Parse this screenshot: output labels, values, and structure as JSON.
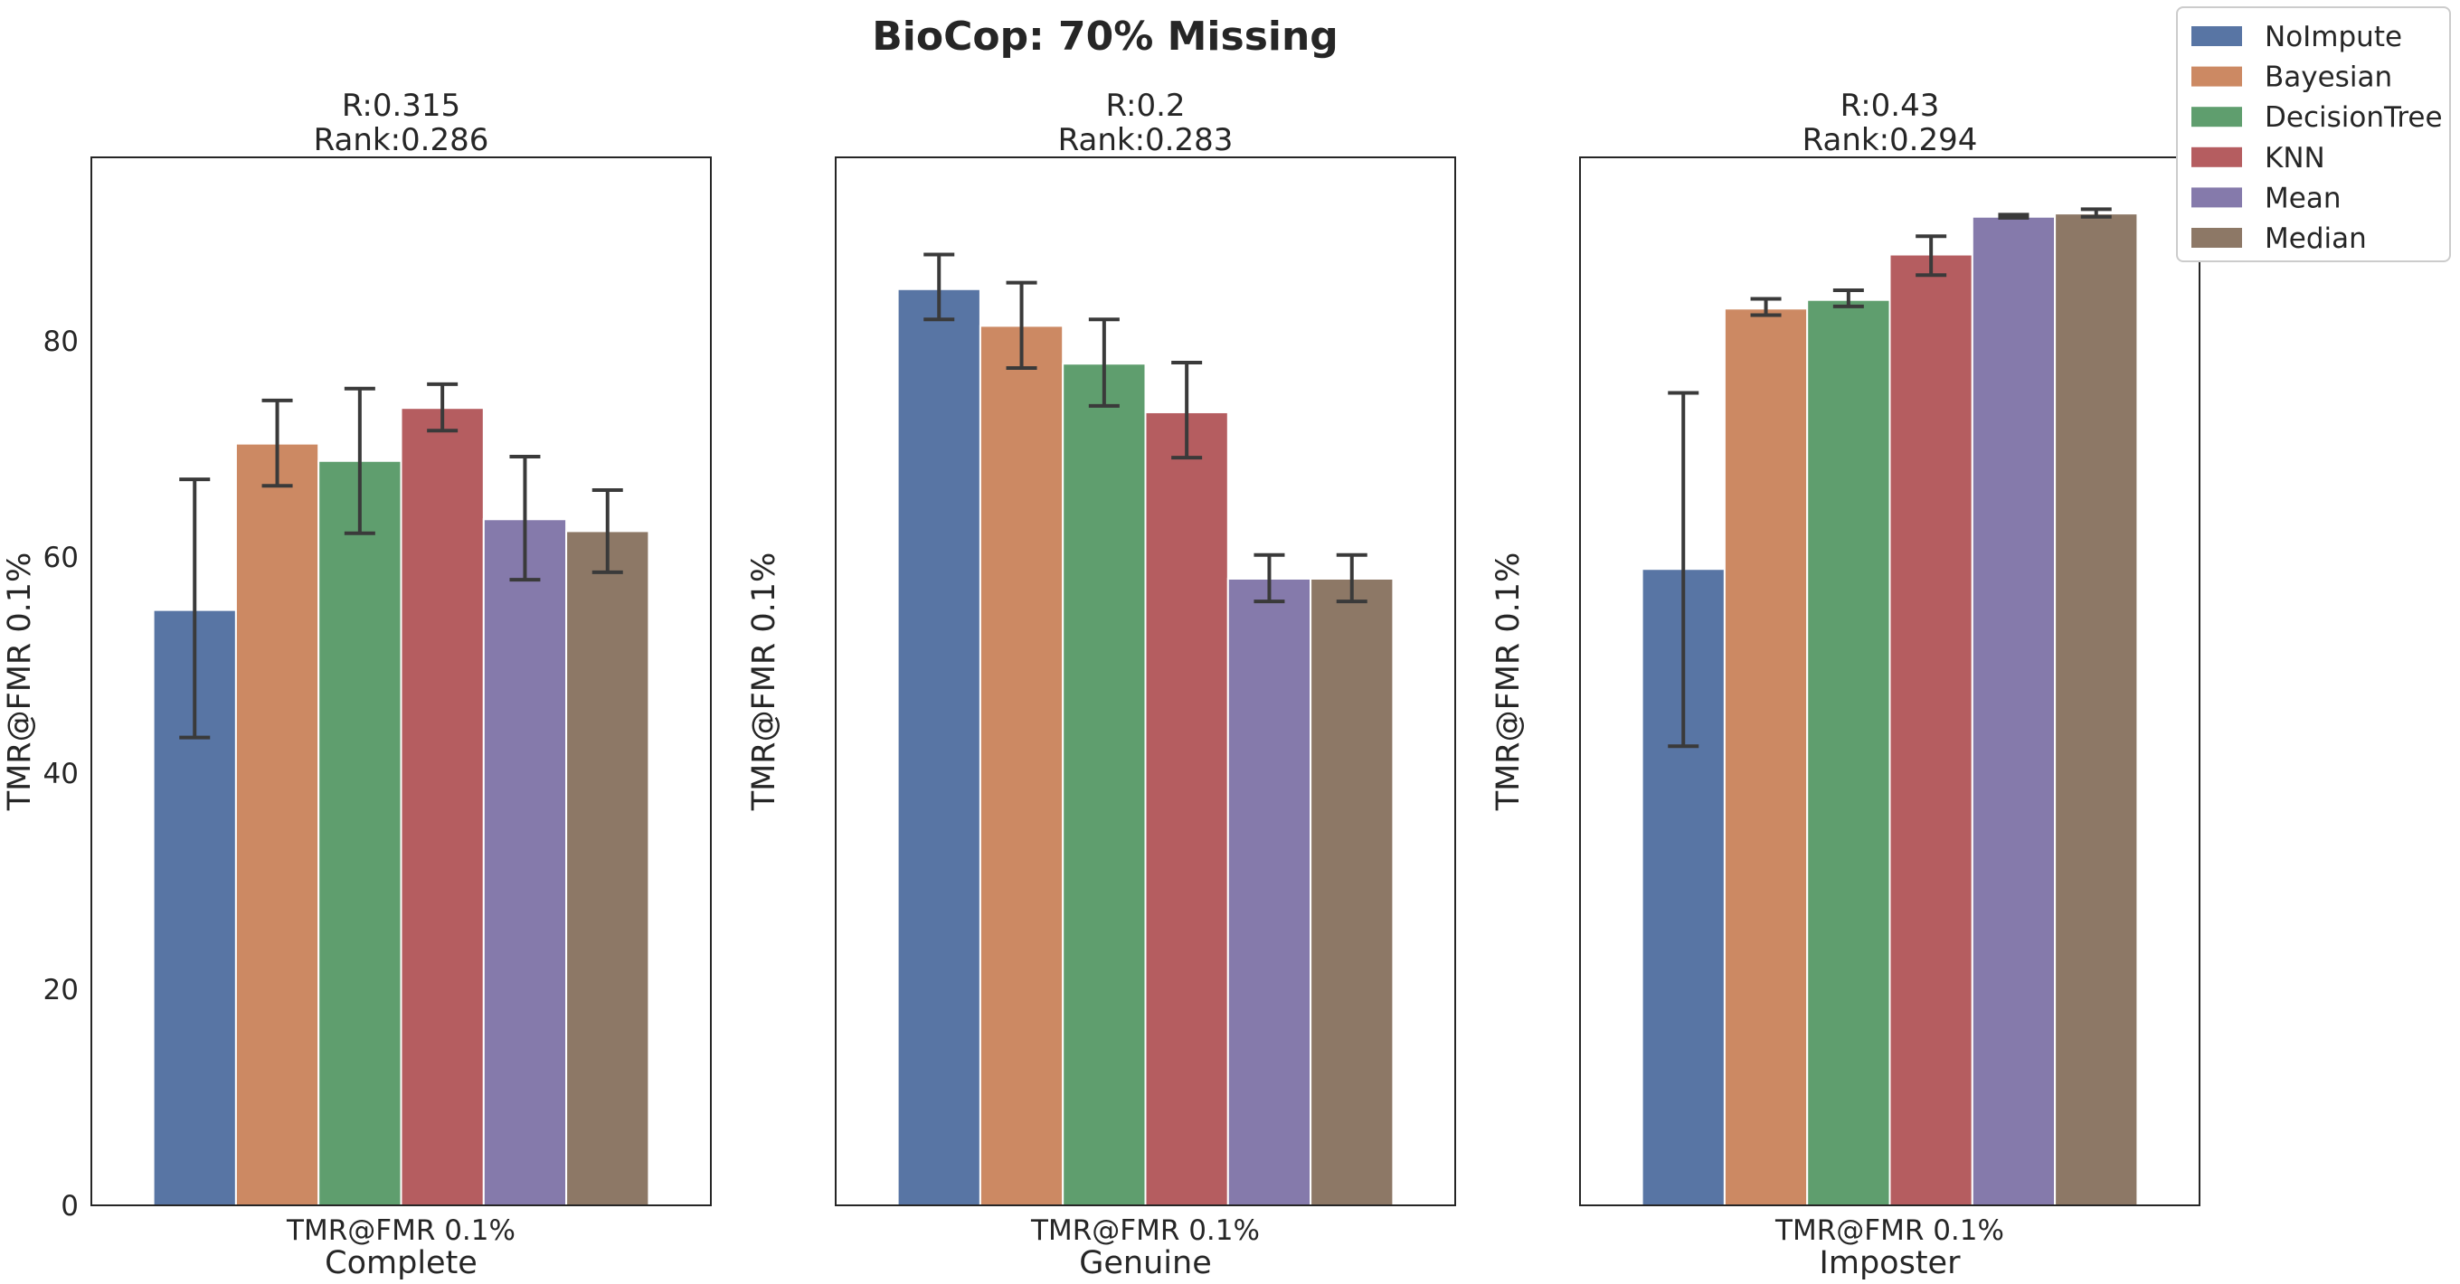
{
  "figure": {
    "title": "BioCop: 70% Missing"
  },
  "colors": {
    "NoImpute": "#5875a4",
    "Bayesian": "#cc8963",
    "DecisionTree": "#5f9e6e",
    "KNN": "#b55d60",
    "Mean": "#857aab",
    "Median": "#8d7866",
    "errorbar": "#3a3a3a",
    "axis": "#262626"
  },
  "legend": {
    "placement": "top-right",
    "entries": [
      "NoImpute",
      "Bayesian",
      "DecisionTree",
      "KNN",
      "Mean",
      "Median"
    ]
  },
  "chart_data": [
    {
      "type": "bar",
      "title_line1": "R:0.315",
      "title_line2": "Rank:0.286",
      "categories": [
        "TMR@FMR 0.1%"
      ],
      "xlabel": "Complete",
      "ylabel": "TMR@FMR 0.1%",
      "ylim": [
        0,
        97
      ],
      "yticks": [
        0,
        20,
        40,
        60,
        80
      ],
      "grid": false,
      "series": [
        {
          "name": "NoImpute",
          "values": [
            55.1
          ],
          "err_low": [
            43.3
          ],
          "err_high": [
            67.2
          ]
        },
        {
          "name": "Bayesian",
          "values": [
            70.5
          ],
          "err_low": [
            66.6
          ],
          "err_high": [
            74.5
          ]
        },
        {
          "name": "DecisionTree",
          "values": [
            68.9
          ],
          "err_low": [
            62.2
          ],
          "err_high": [
            75.6
          ]
        },
        {
          "name": "KNN",
          "values": [
            73.8
          ],
          "err_low": [
            71.7
          ],
          "err_high": [
            76.0
          ]
        },
        {
          "name": "Mean",
          "values": [
            63.5
          ],
          "err_low": [
            57.9
          ],
          "err_high": [
            69.3
          ]
        },
        {
          "name": "Median",
          "values": [
            62.4
          ],
          "err_low": [
            58.6
          ],
          "err_high": [
            66.2
          ]
        }
      ]
    },
    {
      "type": "bar",
      "title_line1": "R:0.2",
      "title_line2": "Rank:0.283",
      "categories": [
        "TMR@FMR 0.1%"
      ],
      "xlabel": "Genuine",
      "ylabel": "TMR@FMR 0.1%",
      "ylim": [
        0,
        97
      ],
      "yticks": [],
      "grid": false,
      "series": [
        {
          "name": "NoImpute",
          "values": [
            84.8
          ],
          "err_low": [
            82.0
          ],
          "err_high": [
            88.0
          ]
        },
        {
          "name": "Bayesian",
          "values": [
            81.4
          ],
          "err_low": [
            77.5
          ],
          "err_high": [
            85.4
          ]
        },
        {
          "name": "DecisionTree",
          "values": [
            77.9
          ],
          "err_low": [
            74.0
          ],
          "err_high": [
            82.0
          ]
        },
        {
          "name": "KNN",
          "values": [
            73.4
          ],
          "err_low": [
            69.2
          ],
          "err_high": [
            78.0
          ]
        },
        {
          "name": "Mean",
          "values": [
            58.0
          ],
          "err_low": [
            55.9
          ],
          "err_high": [
            60.2
          ]
        },
        {
          "name": "Median",
          "values": [
            58.0
          ],
          "err_low": [
            55.9
          ],
          "err_high": [
            60.2
          ]
        }
      ]
    },
    {
      "type": "bar",
      "title_line1": "R:0.43",
      "title_line2": "Rank:0.294",
      "categories": [
        "TMR@FMR 0.1%"
      ],
      "xlabel": "Imposter",
      "ylabel": "TMR@FMR 0.1%",
      "ylim": [
        0,
        97
      ],
      "yticks": [],
      "grid": false,
      "series": [
        {
          "name": "NoImpute",
          "values": [
            58.9
          ],
          "err_low": [
            42.5
          ],
          "err_high": [
            75.2
          ]
        },
        {
          "name": "Bayesian",
          "values": [
            83.0
          ],
          "err_low": [
            82.4
          ],
          "err_high": [
            83.9
          ]
        },
        {
          "name": "DecisionTree",
          "values": [
            83.8
          ],
          "err_low": [
            83.2
          ],
          "err_high": [
            84.7
          ]
        },
        {
          "name": "KNN",
          "values": [
            88.0
          ],
          "err_low": [
            86.1
          ],
          "err_high": [
            89.7
          ]
        },
        {
          "name": "Mean",
          "values": [
            91.5
          ],
          "err_low": [
            91.4
          ],
          "err_high": [
            91.7
          ]
        },
        {
          "name": "Median",
          "values": [
            91.8
          ],
          "err_low": [
            91.5
          ],
          "err_high": [
            92.2
          ]
        }
      ]
    }
  ]
}
